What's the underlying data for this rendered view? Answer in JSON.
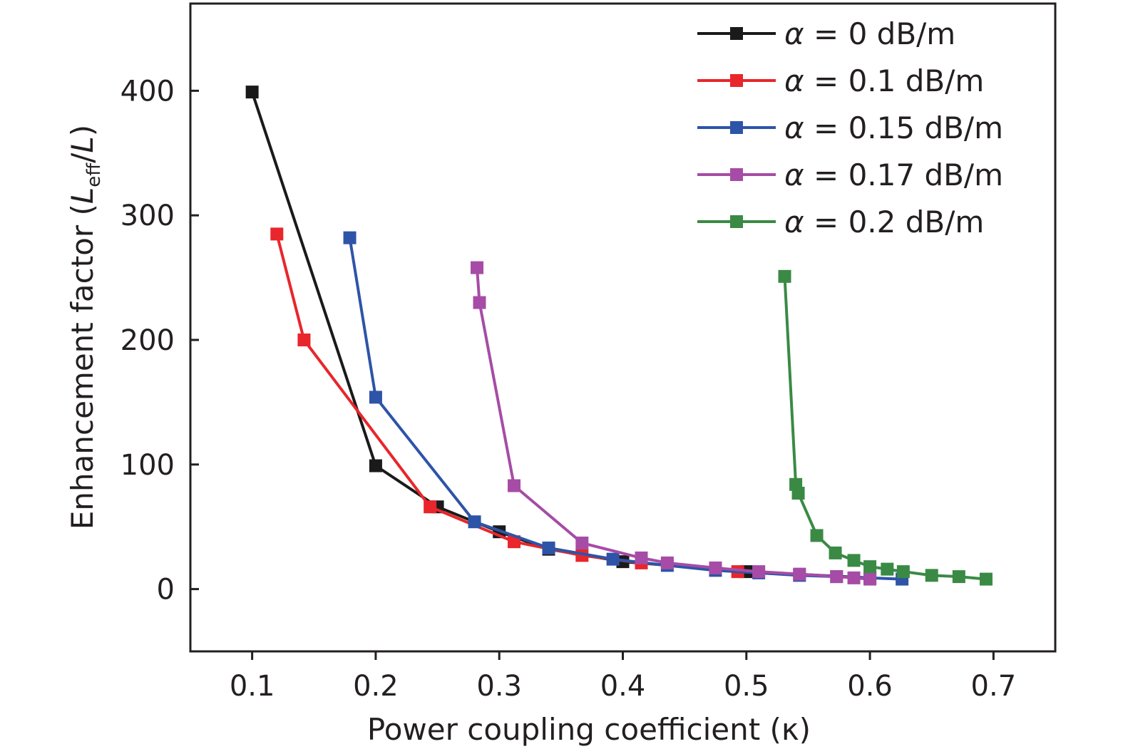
{
  "chart_data": {
    "type": "line",
    "xlabel": "Power coupling coefficient  (κ)",
    "ylabel": {
      "prefix": "Enhancement factor (",
      "var1": "L",
      "sub": "eff",
      "slash": "/",
      "var2": "L",
      "suffix": ")"
    },
    "xlim": [
      0.05,
      0.75
    ],
    "ylim": [
      -50,
      470
    ],
    "xticks": [
      0.1,
      0.2,
      0.3,
      0.4,
      0.5,
      0.6,
      0.7
    ],
    "xtick_labels": [
      "0.1",
      "0.2",
      "0.3",
      "0.4",
      "0.5",
      "0.6",
      "0.7"
    ],
    "yticks": [
      0,
      100,
      200,
      300,
      400
    ],
    "ytick_labels": [
      "0",
      "100",
      "200",
      "300",
      "400"
    ],
    "legend_position": "top-right",
    "grid": false,
    "series": [
      {
        "name": "α = 0 dB/m",
        "name_parts": {
          "sym": "α",
          "rest": " = 0 dB/m"
        },
        "color": "#1a1a1a",
        "x": [
          0.1,
          0.2,
          0.25,
          0.3,
          0.34,
          0.4,
          0.5,
          0.6
        ],
        "y": [
          399,
          99,
          66,
          46,
          32,
          22,
          14,
          9
        ]
      },
      {
        "name": "α = 0.1 dB/m",
        "name_parts": {
          "sym": "α",
          "rest": " = 0.1 dB/m"
        },
        "color": "#e8262b",
        "x": [
          0.12,
          0.142,
          0.244,
          0.312,
          0.367,
          0.415,
          0.493
        ],
        "y": [
          285,
          200,
          66,
          38,
          27,
          21,
          14
        ]
      },
      {
        "name": "α = 0.15 dB/m",
        "name_parts": {
          "sym": "α",
          "rest": " = 0.15 dB/m"
        },
        "color": "#2e54a8",
        "x": [
          0.179,
          0.2,
          0.28,
          0.34,
          0.392,
          0.436,
          0.475,
          0.51,
          0.543,
          0.573,
          0.6,
          0.626
        ],
        "y": [
          282,
          154,
          54,
          33,
          24,
          19,
          15,
          13,
          11,
          10,
          9,
          8
        ]
      },
      {
        "name": "α = 0.17 dB/m",
        "name_parts": {
          "sym": "α",
          "rest": " = 0.17 dB/m"
        },
        "color": "#a64ca6",
        "x": [
          0.282,
          0.284,
          0.312,
          0.367,
          0.415,
          0.436,
          0.475,
          0.51,
          0.543,
          0.573,
          0.587,
          0.6
        ],
        "y": [
          258,
          230,
          83,
          37,
          25,
          21,
          17,
          14,
          12,
          10,
          9,
          8
        ]
      },
      {
        "name": "α = 0.2 dB/m",
        "name_parts": {
          "sym": "α",
          "rest": " = 0.2 dB/m"
        },
        "color": "#3a8a45",
        "x": [
          0.531,
          0.54,
          0.542,
          0.557,
          0.572,
          0.587,
          0.6,
          0.614,
          0.627,
          0.65,
          0.672,
          0.694
        ],
        "y": [
          251,
          84,
          77,
          43,
          29,
          23,
          18,
          16,
          14,
          11,
          10,
          8
        ]
      }
    ]
  }
}
